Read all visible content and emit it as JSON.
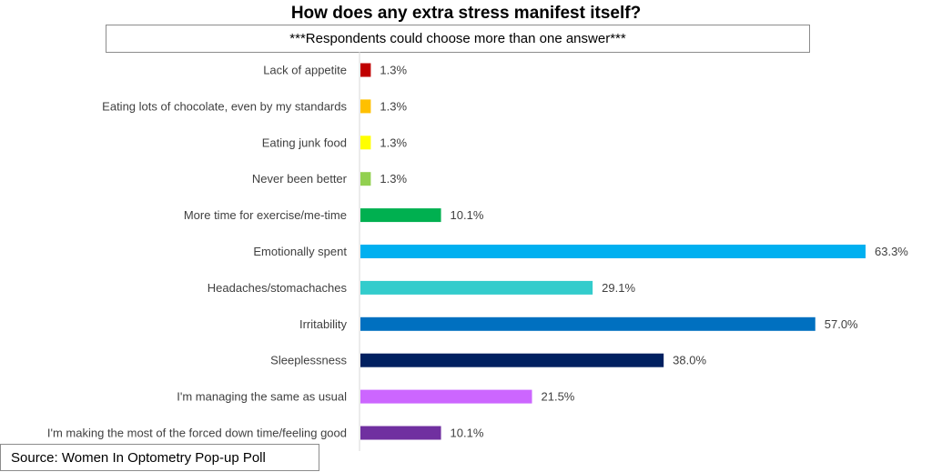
{
  "chart_data": {
    "type": "bar",
    "orientation": "horizontal",
    "title": "How does any extra stress manifest itself?",
    "subtitle": "***Respondents could choose more than one answer***",
    "categories": [
      "Lack of appetite",
      "Eating lots of chocolate, even by my standards",
      "Eating junk food",
      "Never been better",
      "More time for exercise/me-time",
      "Emotionally spent",
      "Headaches/stomachaches",
      "Irritability",
      "Sleeplessness",
      "I'm managing the same as usual",
      "I'm making the most of the forced down time/feeling good"
    ],
    "values": [
      1.3,
      1.3,
      1.3,
      1.3,
      10.1,
      63.3,
      29.1,
      57.0,
      38.0,
      21.5,
      10.1
    ],
    "value_labels": [
      "1.3%",
      "1.3%",
      "1.3%",
      "1.3%",
      "10.1%",
      "63.3%",
      "29.1%",
      "57.0%",
      "38.0%",
      "21.5%",
      "10.1%"
    ],
    "colors": [
      "#c00000",
      "#ffc000",
      "#ffff00",
      "#92d050",
      "#00b050",
      "#00b0f0",
      "#33cccc",
      "#0070c0",
      "#002060",
      "#cc66ff",
      "#7030a0"
    ],
    "xlim": [
      0,
      63.3
    ],
    "grid": false,
    "legend": "none"
  },
  "source": "Source: Women In Optometry Pop-up Poll"
}
